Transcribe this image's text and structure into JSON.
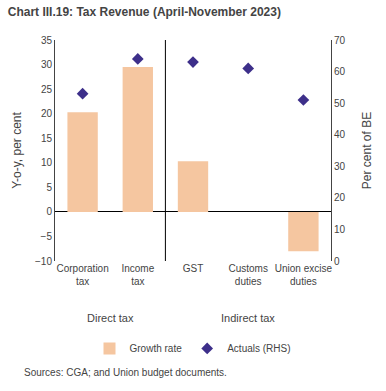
{
  "chart_data": {
    "type": "bar",
    "title": "Chart III.19: Tax Revenue (April-November 2023)",
    "categories": [
      "Corporation\ntax",
      "Income\ntax",
      "GST",
      "Customs\nduties",
      "Union excise\nduties"
    ],
    "series": [
      {
        "name": "Growth rate",
        "type": "bar",
        "color": "#f5c6a0",
        "values": [
          20.3,
          29.5,
          10.3,
          0.0,
          -8.0
        ]
      },
      {
        "name": "Actuals (RHS)",
        "type": "scatter",
        "marker": "diamond",
        "color": "#3d2f8a",
        "axis": "y2",
        "values": [
          53,
          64,
          63,
          61,
          51
        ]
      }
    ],
    "ylabel": "Y-o-y, per cent",
    "y2label": "Per cent of BE",
    "ylim": [
      -10,
      35
    ],
    "yticks": [
      -10,
      -5,
      0,
      5,
      10,
      15,
      20,
      25,
      30,
      35
    ],
    "y2lim": [
      0,
      70
    ],
    "y2ticks": [
      0,
      10,
      20,
      30,
      40,
      50,
      60,
      70
    ],
    "annotations": [
      {
        "text": "Direct tax",
        "categories": [
          "Corporation\ntax",
          "Income\ntax"
        ]
      },
      {
        "text": "Indirect tax",
        "categories": [
          "GST",
          "Customs\nduties",
          "Union excise\nduties"
        ]
      }
    ],
    "source": "Sources: CGA; and Union budget documents.",
    "legend": "bottom",
    "grid": false
  }
}
